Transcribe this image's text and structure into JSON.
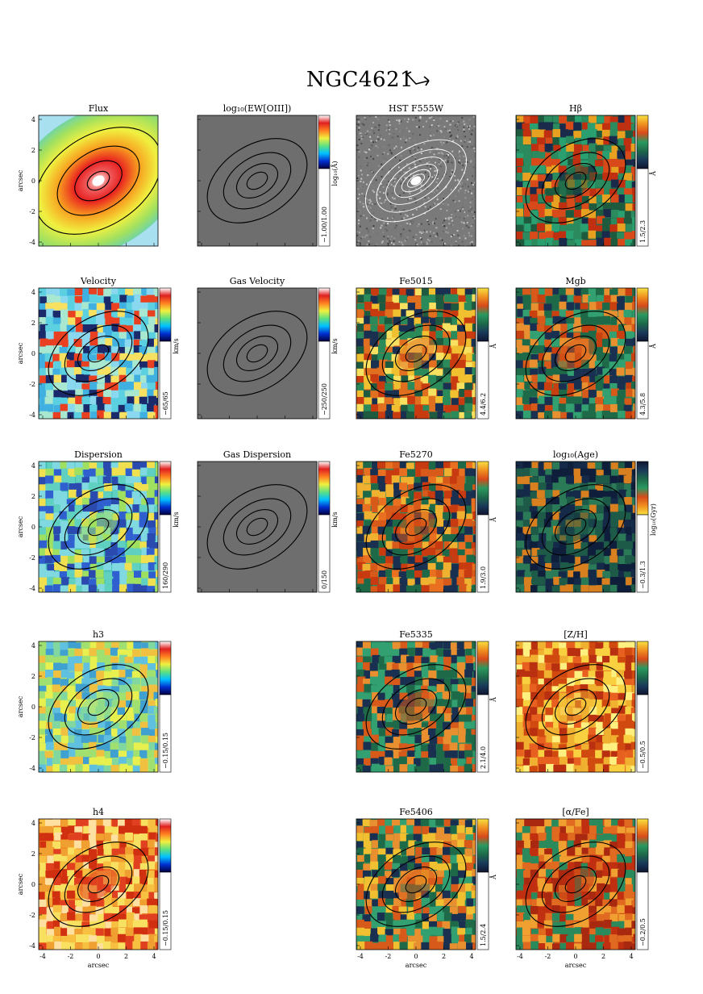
{
  "figure": {
    "title": "NGC4621",
    "axis_label": "arcsec",
    "tick_labels": [
      "-4",
      "-2",
      "0",
      "2",
      "4"
    ],
    "panels": [
      {
        "id": "flux",
        "title": "Flux",
        "colormap": "flux",
        "bar": false,
        "overlay": "flux",
        "row": 0,
        "col": 0
      },
      {
        "id": "ew-oiii",
        "title": "log₁₀(EW[OIII])",
        "colormap": "gray",
        "bar": true,
        "range": "−1.00/1.00",
        "unit": "log₁₀(Å)",
        "row": 0,
        "col": 1
      },
      {
        "id": "hst-f555w",
        "title": "HST F555W",
        "colormap": "hst",
        "bar": false,
        "row": 0,
        "col": 2
      },
      {
        "id": "hbeta",
        "title": "Hβ",
        "colormap": "index-hb",
        "bar": true,
        "range": "1.5/2.3",
        "unit": "Å",
        "row": 0,
        "col": 3
      },
      {
        "id": "velocity",
        "title": "Velocity",
        "colormap": "velocity",
        "bar": true,
        "range": "−65/65",
        "unit": "km/s",
        "row": 1,
        "col": 0
      },
      {
        "id": "gas-velocity",
        "title": "Gas Velocity",
        "colormap": "gray",
        "bar": true,
        "range": "−250/250",
        "unit": "km/s",
        "row": 1,
        "col": 1
      },
      {
        "id": "fe5015",
        "title": "Fe5015",
        "colormap": "index-fe5015",
        "bar": true,
        "range": "4.4/6.2",
        "unit": "Å",
        "row": 1,
        "col": 2
      },
      {
        "id": "mgb",
        "title": "Mgb",
        "colormap": "index-mgb",
        "bar": true,
        "range": "4.3/5.8",
        "unit": "Å",
        "row": 1,
        "col": 3
      },
      {
        "id": "dispersion",
        "title": "Dispersion",
        "colormap": "dispersion",
        "bar": true,
        "range": "160/290",
        "unit": "km/s",
        "row": 2,
        "col": 0
      },
      {
        "id": "gas-dispersion",
        "title": "Gas Dispersion",
        "colormap": "gray",
        "bar": true,
        "range": "0/150",
        "unit": "km/s",
        "row": 2,
        "col": 1
      },
      {
        "id": "fe5270",
        "title": "Fe5270",
        "colormap": "index-fe5270",
        "bar": true,
        "range": "1.9/3.0",
        "unit": "Å",
        "row": 2,
        "col": 2
      },
      {
        "id": "log-age",
        "title": "log₁₀(Age)",
        "colormap": "age",
        "bar": true,
        "range": "−0.3/1.3",
        "unit": "log₁₀(Gyr)",
        "row": 2,
        "col": 3
      },
      {
        "id": "h3",
        "title": "h3",
        "colormap": "h3",
        "bar": true,
        "range": "−0.15/0.15",
        "unit": "",
        "row": 3,
        "col": 0
      },
      {
        "id": "fe5335",
        "title": "Fe5335",
        "colormap": "index-fe5335",
        "bar": true,
        "range": "2.1/4.0",
        "unit": "Å",
        "row": 3,
        "col": 2
      },
      {
        "id": "metallicity",
        "title": "[Z/H]",
        "colormap": "zh",
        "bar": true,
        "range": "−0.5/0.5",
        "unit": "",
        "row": 3,
        "col": 3
      },
      {
        "id": "h4",
        "title": "h4",
        "colormap": "h4",
        "bar": true,
        "range": "−0.15/0.15",
        "unit": "",
        "row": 4,
        "col": 0
      },
      {
        "id": "fe5406",
        "title": "Fe5406",
        "colormap": "index-fe5406",
        "bar": true,
        "range": "1.5/2.4",
        "unit": "Å",
        "row": 4,
        "col": 2
      },
      {
        "id": "alpha-fe",
        "title": "[α/Fe]",
        "colormap": "alphafe",
        "bar": true,
        "range": "−0.2/0.5",
        "unit": "",
        "row": 4,
        "col": 3
      }
    ]
  }
}
